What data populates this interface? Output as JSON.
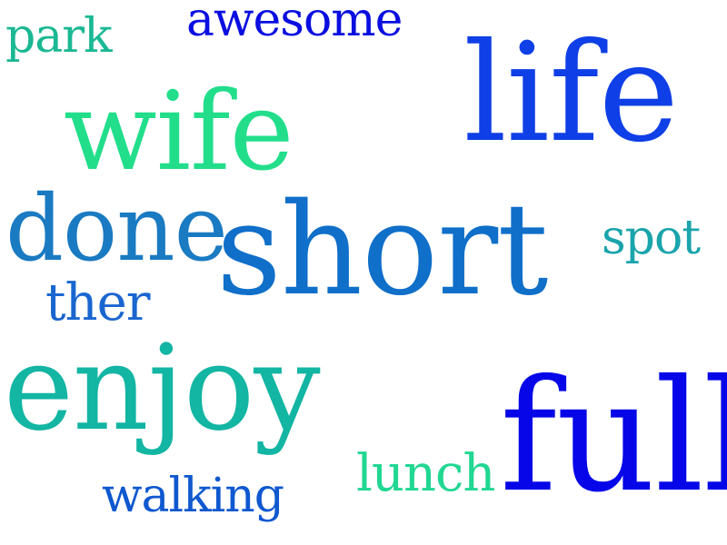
{
  "words": [
    {
      "id": "awesome",
      "text": "awesome",
      "color": "#0a0ee0"
    },
    {
      "id": "park",
      "text": "park",
      "color": "#1ab893"
    },
    {
      "id": "life",
      "text": "life",
      "color": "#0f3fe6"
    },
    {
      "id": "wife",
      "text": "wife",
      "color": "#22de8b"
    },
    {
      "id": "done",
      "text": "done",
      "color": "#1a7ac2"
    },
    {
      "id": "short",
      "text": "short",
      "color": "#0f6fc9"
    },
    {
      "id": "spot",
      "text": "spot",
      "color": "#1aa4ac"
    },
    {
      "id": "ther",
      "text": "ther",
      "color": "#1a66d0"
    },
    {
      "id": "enjoy",
      "text": "enjoy",
      "color": "#13b5a3"
    },
    {
      "id": "full",
      "text": "full",
      "color": "#0606e8"
    },
    {
      "id": "lunch",
      "text": "lunch",
      "color": "#21d792"
    },
    {
      "id": "walking",
      "text": "walking",
      "color": "#0f58cf"
    }
  ]
}
